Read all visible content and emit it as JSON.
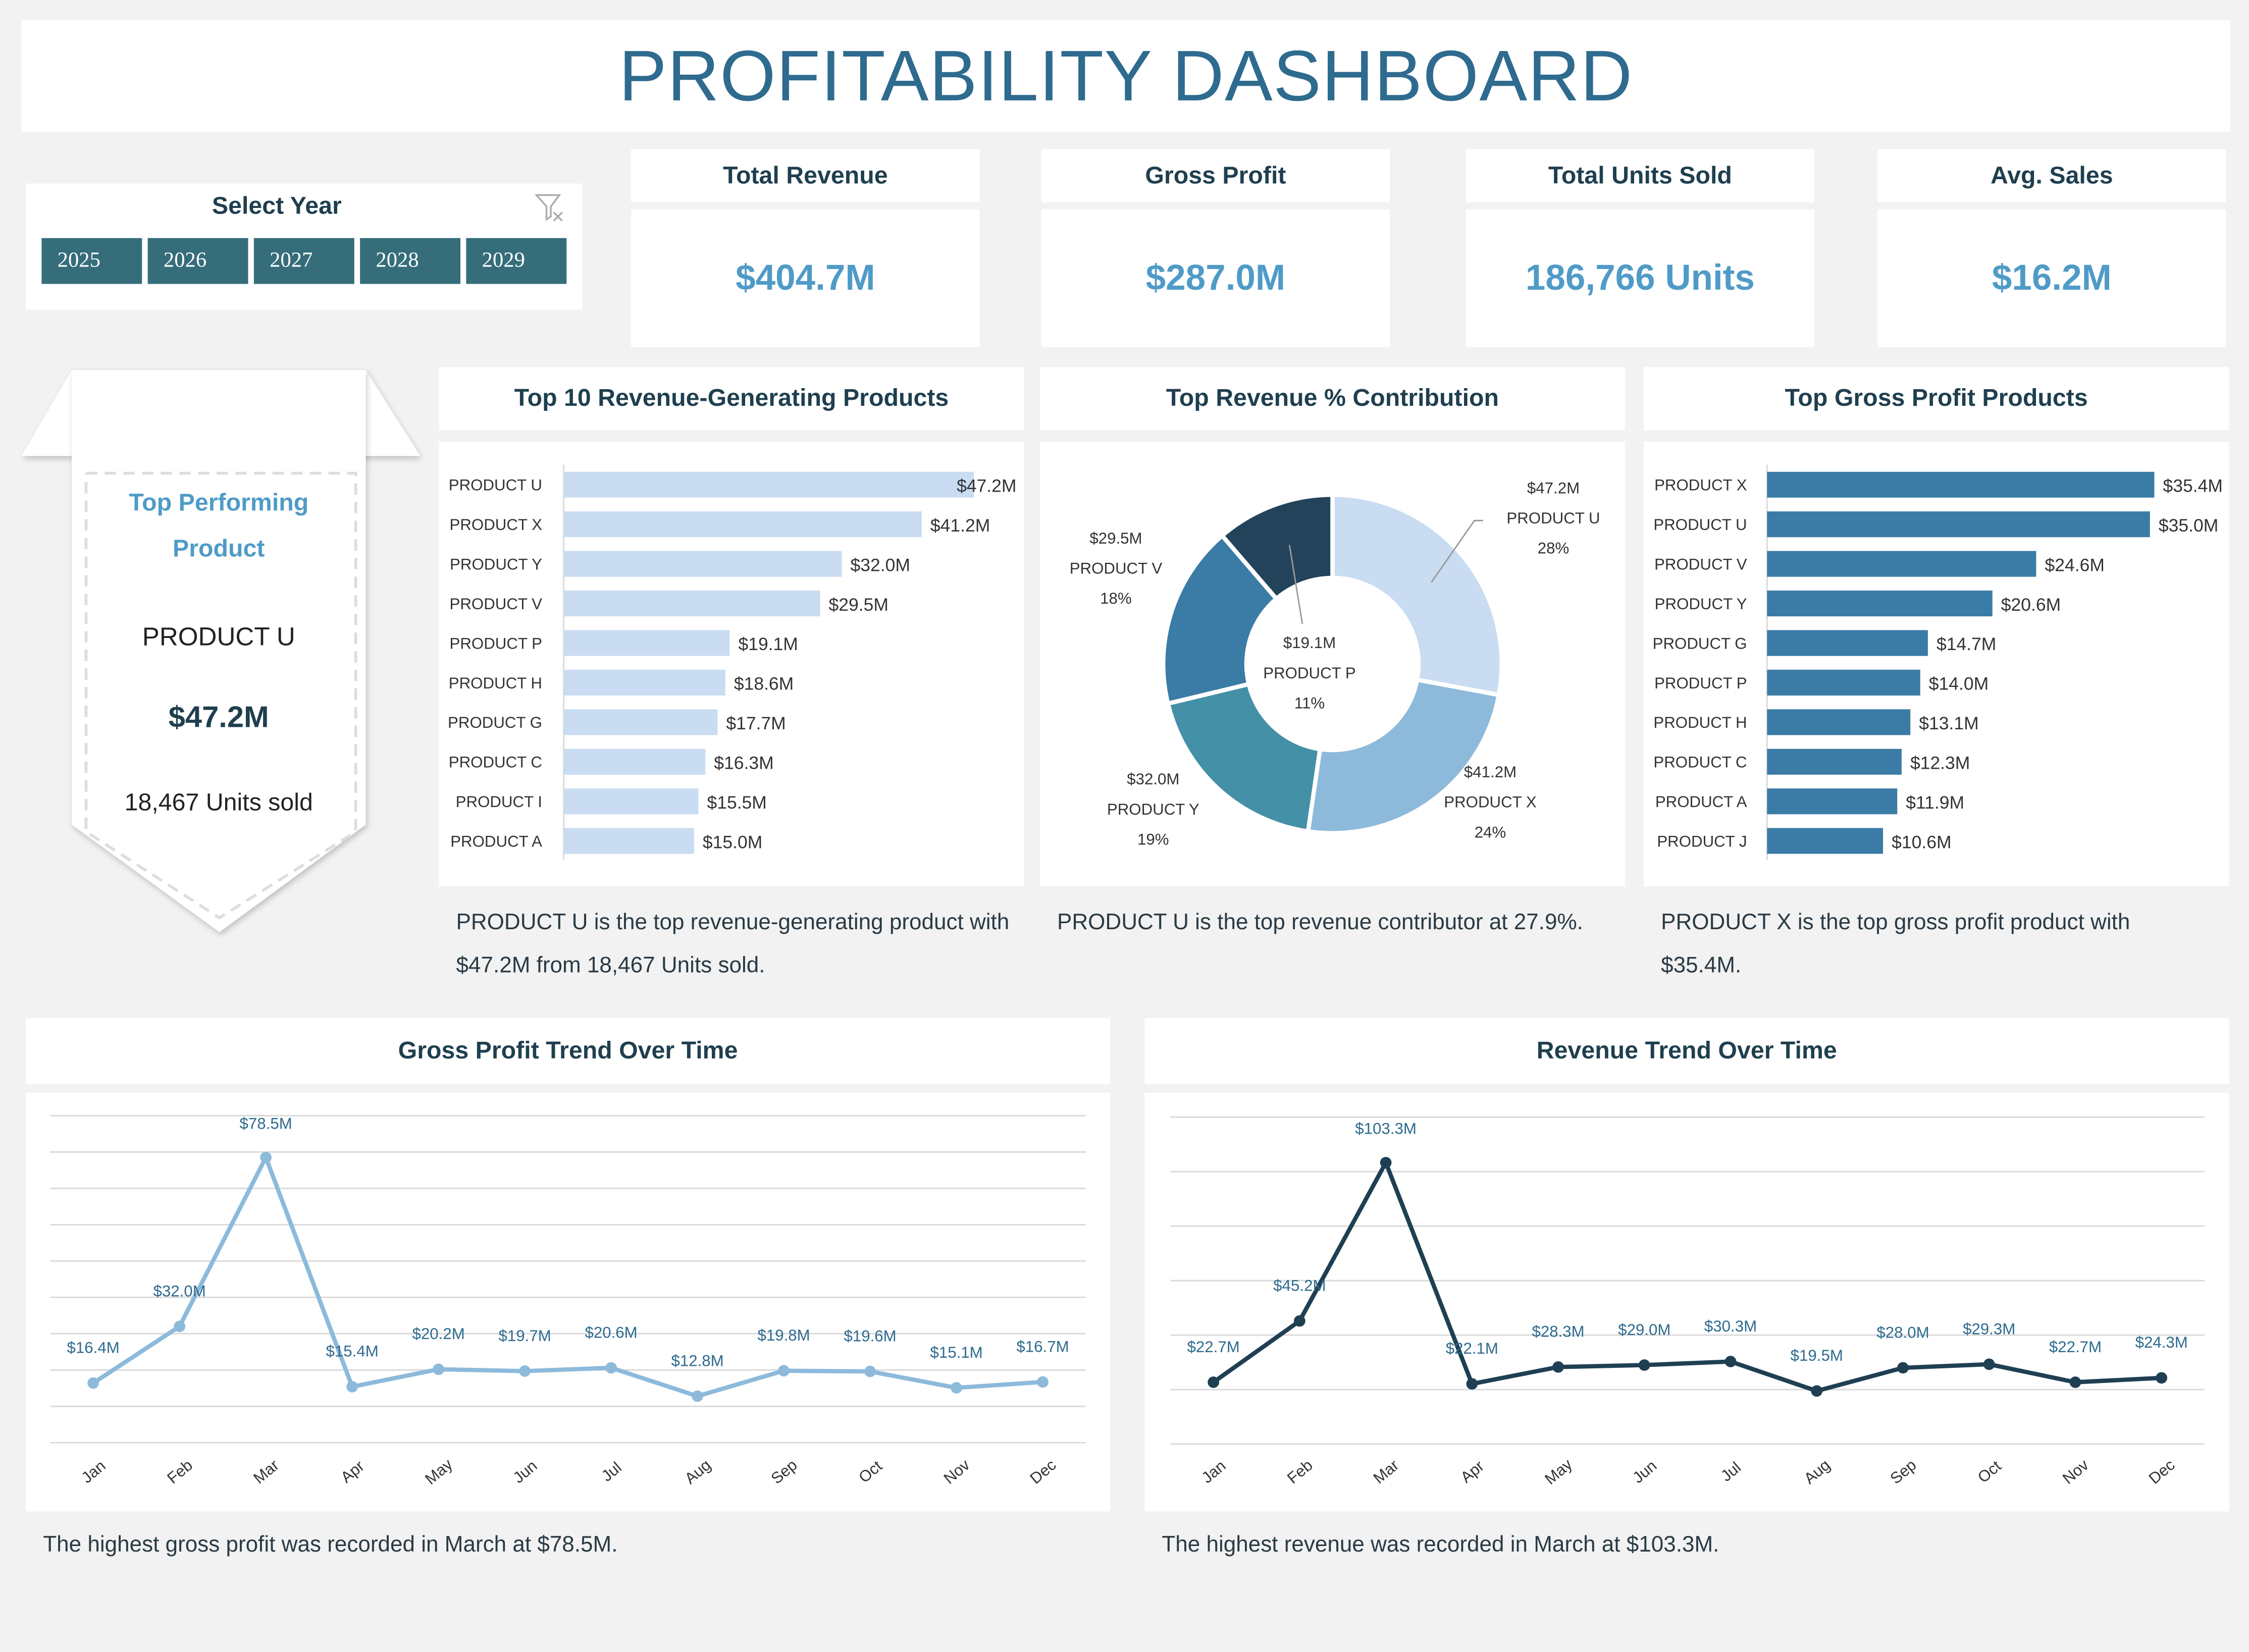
{
  "title": "PROFITABILITY DASHBOARD",
  "year_filter": {
    "label": "Select Year",
    "years": [
      "2025",
      "2026",
      "2027",
      "2028",
      "2029"
    ],
    "clear_icon": "filter-clear-icon"
  },
  "kpis": [
    {
      "label": "Total Revenue",
      "value": "$404.7M"
    },
    {
      "label": "Gross Profit",
      "value": "$287.0M"
    },
    {
      "label": "Total Units Sold",
      "value": "186,766 Units"
    },
    {
      "label": "Avg. Sales",
      "value": "$16.2M"
    }
  ],
  "top_product": {
    "heading_1": "Top Performing",
    "heading_2": "Product",
    "name": "PRODUCT U",
    "revenue": "$47.2M",
    "units": "18,467 Units sold"
  },
  "colors": {
    "accent": "#4f9bc7",
    "title": "#2e6b8e",
    "year_button": "#356d7b",
    "bar_light": "#c9dcf1",
    "bar_dark": "#3b7ca6",
    "line_light": "#8dbadb",
    "line_dark": "#1f3f53",
    "background": "#f2f2f2"
  },
  "chart_data": [
    {
      "type": "bar",
      "title": "Top 10 Revenue-Generating Products",
      "categories": [
        "PRODUCT U",
        "PRODUCT X",
        "PRODUCT Y",
        "PRODUCT V",
        "PRODUCT P",
        "PRODUCT H",
        "PRODUCT G",
        "PRODUCT C",
        "PRODUCT I",
        "PRODUCT A"
      ],
      "values": [
        47.2,
        41.2,
        32.0,
        29.5,
        19.1,
        18.6,
        17.7,
        16.3,
        15.5,
        15.0
      ],
      "labels": [
        "$47.2M",
        "$41.2M",
        "$32.0M",
        "$29.5M",
        "$19.1M",
        "$18.6M",
        "$17.7M",
        "$16.3M",
        "$15.5M",
        "$15.0M"
      ],
      "orientation": "horizontal",
      "color": "#c9dcf1"
    },
    {
      "type": "pie",
      "title": "Top Revenue % Contribution",
      "donut": true,
      "categories": [
        "PRODUCT U",
        "PRODUCT X",
        "PRODUCT Y",
        "PRODUCT V",
        "PRODUCT P"
      ],
      "values": [
        47.2,
        41.2,
        32.0,
        29.5,
        19.1
      ],
      "value_labels": [
        "$47.2M",
        "$41.2M",
        "$32.0M",
        "$29.5M",
        "$19.1M"
      ],
      "percent_labels": [
        "28%",
        "24%",
        "19%",
        "18%",
        "11%"
      ],
      "colors": [
        "#c9dcf1",
        "#8dbadb",
        "#4490a6",
        "#3a7ca6",
        "#22435a"
      ]
    },
    {
      "type": "bar",
      "title": "Top Gross Profit Products",
      "categories": [
        "PRODUCT X",
        "PRODUCT U",
        "PRODUCT V",
        "PRODUCT Y",
        "PRODUCT G",
        "PRODUCT P",
        "PRODUCT H",
        "PRODUCT C",
        "PRODUCT A",
        "PRODUCT J"
      ],
      "values": [
        35.4,
        35.0,
        24.6,
        20.6,
        14.7,
        14.0,
        13.1,
        12.3,
        11.9,
        10.6
      ],
      "labels": [
        "$35.4M",
        "$35.0M",
        "$24.6M",
        "$20.6M",
        "$14.7M",
        "$14.0M",
        "$13.1M",
        "$12.3M",
        "$11.9M",
        "$10.6M"
      ],
      "orientation": "horizontal",
      "color": "#3b7ca6"
    },
    {
      "type": "line",
      "title": "Gross Profit Trend Over Time",
      "x": [
        "Jan",
        "Feb",
        "Mar",
        "Apr",
        "May",
        "Jun",
        "Jul",
        "Aug",
        "Sep",
        "Oct",
        "Nov",
        "Dec"
      ],
      "values": [
        16.4,
        32.0,
        78.5,
        15.4,
        20.2,
        19.7,
        20.6,
        12.8,
        19.8,
        19.6,
        15.1,
        16.7
      ],
      "labels": [
        "$16.4M",
        "$32.0M",
        "$78.5M",
        "$15.4M",
        "$20.2M",
        "$19.7M",
        "$20.6M",
        "$12.8M",
        "$19.8M",
        "$19.6M",
        "$15.1M",
        "$16.7M"
      ],
      "ylim": [
        0,
        90
      ],
      "grid": true,
      "color": "#8dbadb"
    },
    {
      "type": "line",
      "title": "Revenue Trend Over Time",
      "x": [
        "Jan",
        "Feb",
        "Mar",
        "Apr",
        "May",
        "Jun",
        "Jul",
        "Aug",
        "Sep",
        "Oct",
        "Nov",
        "Dec"
      ],
      "values": [
        22.7,
        45.2,
        103.3,
        22.1,
        28.3,
        29.0,
        30.3,
        19.5,
        28.0,
        29.3,
        22.7,
        24.3
      ],
      "labels": [
        "$22.7M",
        "$45.2M",
        "$103.3M",
        "$22.1M",
        "$28.3M",
        "$29.0M",
        "$30.3M",
        "$19.5M",
        "$28.0M",
        "$29.3M",
        "$22.7M",
        "$24.3M"
      ],
      "ylim": [
        0,
        120
      ],
      "grid": true,
      "color": "#1f3f53"
    }
  ],
  "captions": {
    "top10": "PRODUCT U is the top revenue-generating product with $47.2M from 18,467 Units sold.",
    "contribution": "PRODUCT U is the top revenue contributor at 27.9%.",
    "gross_profit": "PRODUCT X is the top gross profit product with $35.4M.",
    "gp_trend": "The highest gross profit was recorded in March at $78.5M.",
    "rev_trend": "The highest revenue was recorded in March at $103.3M."
  }
}
